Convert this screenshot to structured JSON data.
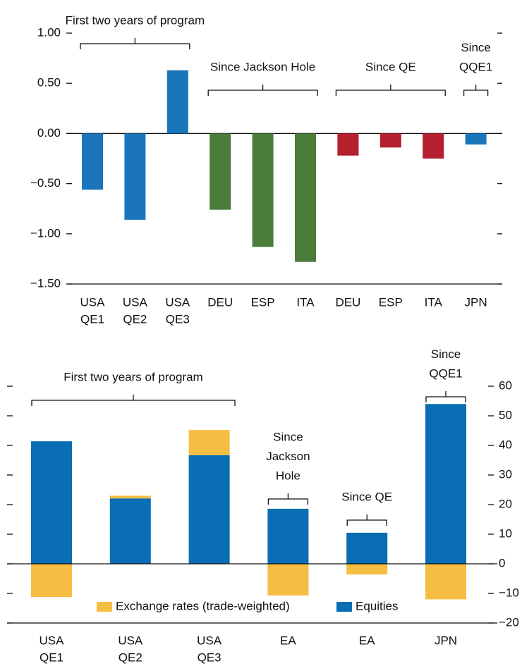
{
  "chart_data": [
    {
      "type": "bar",
      "ylim": [
        -1.5,
        1.0
      ],
      "yticks": [
        {
          "value": 1.0,
          "label": "1.00"
        },
        {
          "value": 0.5,
          "label": "0.50"
        },
        {
          "value": 0,
          "label": "0.00"
        },
        {
          "value": -0.5,
          "label": "−0.50"
        },
        {
          "value": -1.0,
          "label": "−1.00"
        },
        {
          "value": -1.5,
          "label": "−1.50"
        }
      ],
      "groups": [
        {
          "label": [
            "First two years of program"
          ],
          "color": "#1b75bb",
          "categories": [
            [
              "USA",
              "QE1"
            ],
            [
              "USA",
              "QE2"
            ],
            [
              "USA",
              "QE3"
            ]
          ],
          "values": [
            -0.56,
            -0.86,
            0.63
          ]
        },
        {
          "label": [
            "Since Jackson Hole"
          ],
          "color": "#4a7c3a",
          "categories": [
            [
              "DEU"
            ],
            [
              "ESP"
            ],
            [
              "ITA"
            ]
          ],
          "values": [
            -0.76,
            -1.13,
            -1.28
          ]
        },
        {
          "label": [
            "Since QE"
          ],
          "color": "#b5202e",
          "categories": [
            [
              "DEU"
            ],
            [
              "ESP"
            ],
            [
              "ITA"
            ]
          ],
          "values": [
            -0.22,
            -0.14,
            -0.25
          ]
        },
        {
          "label": [
            "Since",
            "QQE1"
          ],
          "color": "#1b75bb",
          "categories": [
            [
              "JPN"
            ]
          ],
          "values": [
            -0.11
          ]
        }
      ]
    },
    {
      "type": "stacked_bar",
      "ylim": [
        -20,
        60
      ],
      "yticks": [
        60,
        50,
        40,
        30,
        20,
        10,
        0,
        {
          "value": -10,
          "label": "−10"
        },
        {
          "value": -20,
          "label": "−20"
        }
      ],
      "legend": "bottom",
      "groups": [
        {
          "label": [
            "First two years of program"
          ],
          "categories": [
            [
              "USA",
              "QE1"
            ],
            [
              "USA",
              "QE2"
            ],
            [
              "USA",
              "QE3"
            ]
          ]
        },
        {
          "label": [
            "Since",
            "Jackson",
            "Hole"
          ],
          "categories": [
            [
              "EA"
            ]
          ]
        },
        {
          "label": [
            "Since QE"
          ],
          "categories": [
            [
              "EA"
            ]
          ]
        },
        {
          "label": [
            "Since",
            "QQE1"
          ],
          "categories": [
            [
              "JPN"
            ]
          ]
        }
      ],
      "series": [
        {
          "name": "Exchange rates (trade-weighted)",
          "color": "#f5bd42",
          "values": [
            -11.2,
            0.9,
            8.5,
            -10.7,
            -3.6,
            -12.0
          ]
        },
        {
          "name": "Equities",
          "color": "#0a6eb4",
          "values": [
            41.4,
            22.1,
            36.7,
            18.6,
            10.5,
            54.0
          ]
        }
      ]
    }
  ]
}
